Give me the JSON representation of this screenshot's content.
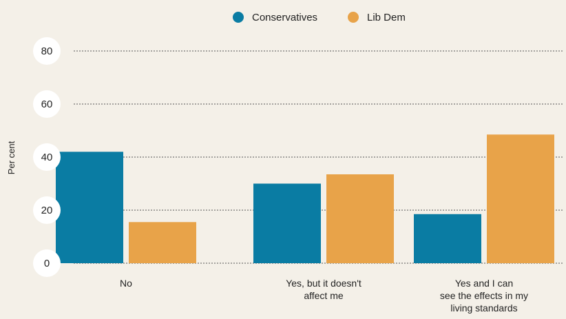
{
  "chart_data": {
    "type": "bar",
    "categories": [
      [
        "No"
      ],
      [
        "Yes, but it doesn't",
        "affect me"
      ],
      [
        "Yes and I can",
        "see the effects in my",
        "living standards"
      ]
    ],
    "series": [
      {
        "name": "Conservatives",
        "color": "#0a7ca3",
        "values": [
          42,
          30,
          18.5
        ]
      },
      {
        "name": "Lib Dem",
        "color": "#e8a349",
        "values": [
          15.5,
          33.5,
          48.5
        ]
      }
    ],
    "ylabel": "Per cent",
    "yticks": [
      0,
      20,
      40,
      60,
      80
    ],
    "ylim": [
      0,
      80
    ],
    "grid": true,
    "legend_position": "top-center"
  }
}
